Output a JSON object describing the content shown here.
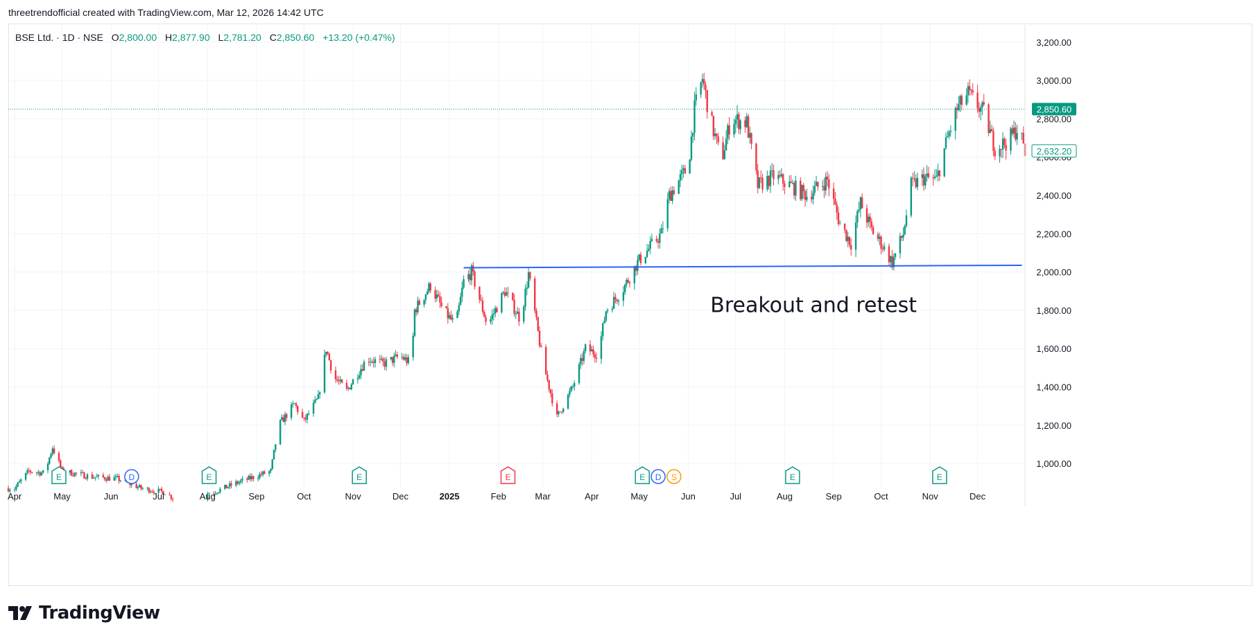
{
  "header": {
    "caption": "threetrendofficial created with TradingView.com, Mar 12, 2026 14:42 UTC"
  },
  "legend": {
    "symbol": "BSE Ltd. · 1D · NSE",
    "open_label": "O",
    "open": "2,800.00",
    "high_label": "H",
    "high": "2,877.90",
    "low_label": "L",
    "low": "2,781.20",
    "close_label": "C",
    "close": "2,850.60",
    "change": "+13.20 (+0.47%)"
  },
  "footer": {
    "brand": "TradingView"
  },
  "colors": {
    "up": "#089981",
    "down": "#f23645",
    "trendline": "#2962ff",
    "grid": "#f0f3fa",
    "axis_text": "#131722",
    "earnings": "#089981",
    "earnings_negative": "#f23645",
    "dividend": "#2962ff",
    "split": "#ff9800"
  },
  "chart_data": {
    "type": "candlestick",
    "title": "BSE Ltd. · 1D · NSE",
    "x_range": [
      "2024-03-28",
      "2025-12-31"
    ],
    "y_range": [
      870,
      3290
    ],
    "y_ticks": [
      1000,
      1200,
      1400,
      1600,
      1800,
      2000,
      2200,
      2400,
      2600,
      2800,
      3000,
      3200
    ],
    "y_tick_labels": [
      "1,000.00",
      "1,200.00",
      "1,400.00",
      "1,600.00",
      "1,800.00",
      "2,000.00",
      "2,200.00",
      "2,400.00",
      "2,600.00",
      "2,800.00",
      "3,000.00",
      "3,200.00"
    ],
    "x_ticks": [
      {
        "date": "2024-04-01",
        "label": "Apr",
        "bold": false
      },
      {
        "date": "2024-05-01",
        "label": "May",
        "bold": false
      },
      {
        "date": "2024-06-01",
        "label": "Jun",
        "bold": false
      },
      {
        "date": "2024-07-01",
        "label": "Jul",
        "bold": false
      },
      {
        "date": "2024-08-01",
        "label": "Aug",
        "bold": false
      },
      {
        "date": "2024-09-01",
        "label": "Sep",
        "bold": false
      },
      {
        "date": "2024-10-01",
        "label": "Oct",
        "bold": false
      },
      {
        "date": "2024-11-01",
        "label": "Nov",
        "bold": false
      },
      {
        "date": "2024-12-01",
        "label": "Dec",
        "bold": false
      },
      {
        "date": "2025-01-01",
        "label": "2025",
        "bold": true
      },
      {
        "date": "2025-02-01",
        "label": "Feb",
        "bold": false
      },
      {
        "date": "2025-03-01",
        "label": "Mar",
        "bold": false
      },
      {
        "date": "2025-04-01",
        "label": "Apr",
        "bold": false
      },
      {
        "date": "2025-05-01",
        "label": "May",
        "bold": false
      },
      {
        "date": "2025-06-01",
        "label": "Jun",
        "bold": false
      },
      {
        "date": "2025-07-01",
        "label": "Jul",
        "bold": false
      },
      {
        "date": "2025-08-01",
        "label": "Aug",
        "bold": false
      },
      {
        "date": "2025-09-01",
        "label": "Sep",
        "bold": false
      },
      {
        "date": "2025-10-01",
        "label": "Oct",
        "bold": false
      },
      {
        "date": "2025-11-01",
        "label": "Nov",
        "bold": false
      },
      {
        "date": "2025-12-01",
        "label": "Dec",
        "bold": false
      }
    ],
    "price_path": [
      [
        "2024-04-01",
        870
      ],
      [
        "2024-04-10",
        960
      ],
      [
        "2024-04-20",
        950
      ],
      [
        "2024-04-25",
        1085
      ],
      [
        "2024-05-01",
        960
      ],
      [
        "2024-05-20",
        930
      ],
      [
        "2024-06-05",
        920
      ],
      [
        "2024-06-20",
        870
      ],
      [
        "2024-07-05",
        850
      ],
      [
        "2024-07-10",
        820
      ],
      [
        "2024-08-05",
        850
      ],
      [
        "2024-08-20",
        900
      ],
      [
        "2024-09-10",
        960
      ],
      [
        "2024-09-15",
        1200
      ],
      [
        "2024-09-25",
        1310
      ],
      [
        "2024-10-01",
        1220
      ],
      [
        "2024-10-10",
        1340
      ],
      [
        "2024-10-15",
        1600
      ],
      [
        "2024-10-20",
        1450
      ],
      [
        "2024-10-28",
        1380
      ],
      [
        "2024-11-10",
        1550
      ],
      [
        "2024-11-20",
        1520
      ],
      [
        "2024-12-01",
        1560
      ],
      [
        "2024-12-08",
        1520
      ],
      [
        "2024-12-10",
        1800
      ],
      [
        "2024-12-20",
        1930
      ],
      [
        "2024-12-28",
        1800
      ],
      [
        "2025-01-05",
        1720
      ],
      [
        "2025-01-10",
        1950
      ],
      [
        "2025-01-15",
        2000
      ],
      [
        "2025-01-25",
        1720
      ],
      [
        "2025-02-05",
        1900
      ],
      [
        "2025-02-15",
        1750
      ],
      [
        "2025-02-20",
        1990
      ],
      [
        "2025-03-01",
        1530
      ],
      [
        "2025-03-10",
        1240
      ],
      [
        "2025-03-20",
        1400
      ],
      [
        "2025-03-28",
        1600
      ],
      [
        "2025-04-05",
        1570
      ],
      [
        "2025-04-10",
        1800
      ],
      [
        "2025-04-20",
        1900
      ],
      [
        "2025-04-30",
        2050
      ],
      [
        "2025-05-10",
        2150
      ],
      [
        "2025-05-15",
        2200
      ],
      [
        "2025-05-20",
        2400
      ],
      [
        "2025-05-28",
        2500
      ],
      [
        "2025-06-01",
        2550
      ],
      [
        "2025-06-05",
        2850
      ],
      [
        "2025-06-10",
        3010
      ],
      [
        "2025-06-15",
        2800
      ],
      [
        "2025-06-22",
        2580
      ],
      [
        "2025-06-28",
        2800
      ],
      [
        "2025-07-08",
        2780
      ],
      [
        "2025-07-15",
        2450
      ],
      [
        "2025-07-25",
        2500
      ],
      [
        "2025-08-05",
        2450
      ],
      [
        "2025-08-15",
        2400
      ],
      [
        "2025-08-28",
        2480
      ],
      [
        "2025-09-05",
        2250
      ],
      [
        "2025-09-12",
        2150
      ],
      [
        "2025-09-18",
        2360
      ],
      [
        "2025-09-25",
        2220
      ],
      [
        "2025-10-01",
        2150
      ],
      [
        "2025-10-08",
        2050
      ],
      [
        "2025-10-15",
        2200
      ],
      [
        "2025-10-20",
        2450
      ],
      [
        "2025-10-28",
        2490
      ],
      [
        "2025-11-05",
        2480
      ],
      [
        "2025-11-12",
        2700
      ],
      [
        "2025-11-18",
        2850
      ],
      [
        "2025-11-25",
        2930
      ],
      [
        "2025-12-05",
        2830
      ],
      [
        "2025-12-12",
        2650
      ],
      [
        "2025-12-20",
        2680
      ],
      [
        "2025-12-27",
        2760
      ],
      [
        "2025-12-31",
        2620
      ]
    ],
    "trendline": {
      "start": [
        "2025-01-10",
        2022
      ],
      "end": [
        "2025-12-29",
        2035
      ]
    },
    "current_price": {
      "value": 2850.6,
      "label": "2,850.60"
    },
    "secondary_price": {
      "value": 2632.2,
      "label": "2,632.20"
    },
    "annotation": {
      "text": "Breakout and retest",
      "date": "2025-06-15",
      "value": 1790
    },
    "events": [
      {
        "date": "2024-04-29",
        "type": "E",
        "kind": "earnings"
      },
      {
        "date": "2024-06-14",
        "type": "D",
        "kind": "dividend"
      },
      {
        "date": "2024-08-02",
        "type": "E",
        "kind": "earnings"
      },
      {
        "date": "2024-11-05",
        "type": "E",
        "kind": "earnings"
      },
      {
        "date": "2025-02-07",
        "type": "E",
        "kind": "earnings_negative"
      },
      {
        "date": "2025-05-03",
        "type": "E",
        "kind": "earnings"
      },
      {
        "date": "2025-05-13",
        "type": "D",
        "kind": "dividend"
      },
      {
        "date": "2025-05-23",
        "type": "S",
        "kind": "split"
      },
      {
        "date": "2025-08-06",
        "type": "E",
        "kind": "earnings"
      },
      {
        "date": "2025-11-07",
        "type": "E",
        "kind": "earnings"
      }
    ]
  }
}
